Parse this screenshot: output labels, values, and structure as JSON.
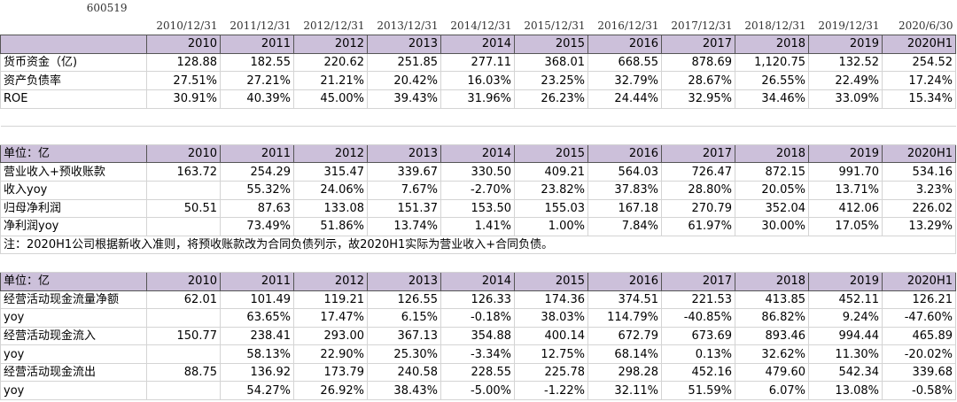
{
  "code": "600519",
  "dates": [
    "2010/12/31",
    "2011/12/31",
    "2012/12/31",
    "2013/12/31",
    "2014/12/31",
    "2015/12/31",
    "2016/12/31",
    "2017/12/31",
    "2018/12/31",
    "2019/12/31",
    "2020/6/30"
  ],
  "sections": [
    {
      "header": {
        "label": null,
        "cells": [
          "2010",
          "2011",
          "2012",
          "2013",
          "2014",
          "2015",
          "2016",
          "2017",
          "2018",
          "2019",
          "2020H1"
        ]
      },
      "rows": [
        {
          "label": "货币资金（亿)",
          "cells": [
            "128.88",
            "182.55",
            "220.62",
            "251.85",
            "277.11",
            "368.01",
            "668.55",
            "878.69",
            "1,120.75",
            "132.52",
            "254.52"
          ]
        },
        {
          "label": "资产负债率",
          "cells": [
            "27.51%",
            "27.21%",
            "21.21%",
            "20.42%",
            "16.03%",
            "23.25%",
            "32.79%",
            "28.67%",
            "26.55%",
            "22.49%",
            "17.24%"
          ]
        },
        {
          "label": "ROE",
          "cells": [
            "30.91%",
            "40.39%",
            "45.00%",
            "39.43%",
            "31.96%",
            "26.23%",
            "24.44%",
            "32.95%",
            "34.46%",
            "33.09%",
            "15.34%"
          ]
        }
      ]
    },
    {
      "header": {
        "label": "单位：亿",
        "cells": [
          "2010",
          "2011",
          "2012",
          "2013",
          "2014",
          "2015",
          "2016",
          "2017",
          "2018",
          "2019",
          "2020H1"
        ]
      },
      "rows": [
        {
          "label": "营业收入+预收账款",
          "cells": [
            "163.72",
            "254.29",
            "315.47",
            "339.67",
            "330.50",
            "409.21",
            "564.03",
            "726.47",
            "872.15",
            "991.70",
            "534.16"
          ]
        },
        {
          "label": "收入yoy",
          "cells": [
            null,
            "55.32%",
            "24.06%",
            "7.67%",
            "-2.70%",
            "23.82%",
            "37.83%",
            "28.80%",
            "20.05%",
            "13.71%",
            "3.23%"
          ]
        },
        {
          "label": "归母净利润",
          "cells": [
            "50.51",
            "87.63",
            "133.08",
            "151.37",
            "153.50",
            "155.03",
            "167.18",
            "270.79",
            "352.04",
            "412.06",
            "226.02"
          ]
        },
        {
          "label": "净利润yoy",
          "cells": [
            null,
            "73.49%",
            "51.86%",
            "13.74%",
            "1.41%",
            "1.00%",
            "7.84%",
            "61.97%",
            "30.00%",
            "17.05%",
            "13.29%"
          ]
        }
      ],
      "note": "注：2020H1公司根据新收入准则，将预收账款改为合同负债列示，故2020H1实际为营业收入+合同负债。"
    },
    {
      "header": {
        "label": "单位：亿",
        "cells": [
          "2010",
          "2011",
          "2012",
          "2013",
          "2014",
          "2015",
          "2016",
          "2017",
          "2018",
          "2019",
          "2020H1"
        ]
      },
      "rows": [
        {
          "label": "经营活动现金流量净额",
          "cells": [
            "62.01",
            "101.49",
            "119.21",
            "126.55",
            "126.33",
            "174.36",
            "374.51",
            "221.53",
            "413.85",
            "452.11",
            "126.21"
          ]
        },
        {
          "label": "yoy",
          "cells": [
            null,
            "63.65%",
            "17.47%",
            "6.15%",
            "-0.18%",
            "38.03%",
            "114.79%",
            "-40.85%",
            "86.82%",
            "9.24%",
            "-47.60%"
          ]
        },
        {
          "label": "经营活动现金流入",
          "cells": [
            "150.77",
            "238.41",
            "293.00",
            "367.13",
            "354.88",
            "400.14",
            "672.79",
            "673.69",
            "893.46",
            "994.44",
            "465.89"
          ]
        },
        {
          "label": "yoy",
          "cells": [
            null,
            "58.13%",
            "22.90%",
            "25.30%",
            "-3.34%",
            "12.75%",
            "68.14%",
            "0.13%",
            "32.62%",
            "11.30%",
            "-20.02%"
          ]
        },
        {
          "label": "经营活动现金流出",
          "cells": [
            "88.75",
            "136.92",
            "173.79",
            "240.58",
            "228.55",
            "225.78",
            "298.28",
            "452.16",
            "479.60",
            "542.34",
            "339.68"
          ]
        },
        {
          "label": "yoy",
          "cells": [
            null,
            "54.27%",
            "26.92%",
            "38.43%",
            "-5.00%",
            "-1.22%",
            "32.11%",
            "51.59%",
            "6.07%",
            "13.08%",
            "-0.58%"
          ]
        }
      ]
    }
  ]
}
